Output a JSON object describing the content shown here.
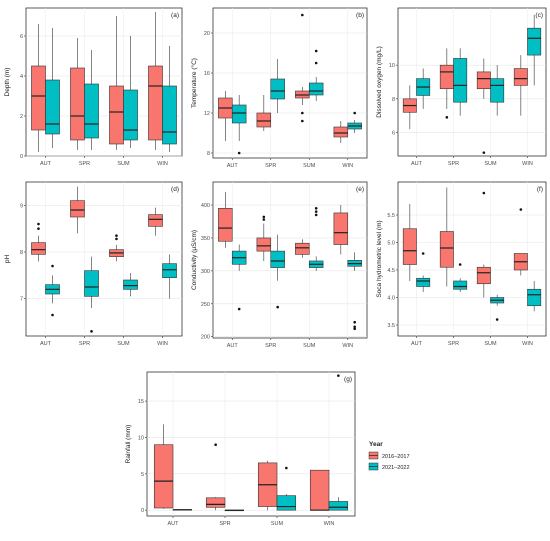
{
  "legend": {
    "title": "Year",
    "items": [
      {
        "label": "2016–2017",
        "color": "#f8766d"
      },
      {
        "label": "2021–2022",
        "color": "#00bfc4"
      }
    ]
  },
  "chart_data": [
    {
      "type": "boxplot",
      "panel": "(a)",
      "ylabel": "Depth (m)",
      "categories": [
        "AUT",
        "SPR",
        "SUM",
        "WIN"
      ],
      "yticks": [
        0,
        2,
        4,
        6
      ],
      "ylim": [
        0,
        7.4
      ],
      "series": [
        {
          "name": "2016–2017",
          "boxes": [
            {
              "min": 0.2,
              "q1": 1.3,
              "median": 3.0,
              "q3": 4.5,
              "max": 6.6,
              "outliers": []
            },
            {
              "min": 0.3,
              "q1": 0.8,
              "median": 2.0,
              "q3": 4.4,
              "max": 5.9,
              "outliers": []
            },
            {
              "min": 0.3,
              "q1": 0.6,
              "median": 2.2,
              "q3": 3.5,
              "max": 7.0,
              "outliers": []
            },
            {
              "min": 0.3,
              "q1": 0.8,
              "median": 3.5,
              "q3": 4.5,
              "max": 7.2,
              "outliers": []
            }
          ]
        },
        {
          "name": "2021–2022",
          "boxes": [
            {
              "min": 0.4,
              "q1": 1.1,
              "median": 1.6,
              "q3": 3.8,
              "max": 6.4,
              "outliers": []
            },
            {
              "min": 0.3,
              "q1": 0.9,
              "median": 1.6,
              "q3": 3.6,
              "max": 5.3,
              "outliers": []
            },
            {
              "min": 0.4,
              "q1": 0.8,
              "median": 1.3,
              "q3": 3.3,
              "max": 6.0,
              "outliers": []
            },
            {
              "min": 0.2,
              "q1": 0.6,
              "median": 1.2,
              "q3": 3.5,
              "max": 5.5,
              "outliers": []
            }
          ]
        }
      ]
    },
    {
      "type": "boxplot",
      "panel": "(b)",
      "ylabel": "Temperature (°C)",
      "categories": [
        "AUT",
        "SPR",
        "SUM",
        "WIN"
      ],
      "yticks": [
        8,
        12,
        16,
        20
      ],
      "ylim": [
        7.5,
        22.5
      ],
      "series": [
        {
          "name": "2016–2017",
          "boxes": [
            {
              "min": 9.2,
              "q1": 11.5,
              "median": 12.5,
              "q3": 13.5,
              "max": 14.2,
              "outliers": []
            },
            {
              "min": 10.2,
              "q1": 10.6,
              "median": 11.2,
              "q3": 12.0,
              "max": 13.8,
              "outliers": []
            },
            {
              "min": 12.8,
              "q1": 13.5,
              "median": 13.8,
              "q3": 14.2,
              "max": 14.6,
              "outliers": [
                21.8,
                12.0,
                11.2
              ]
            },
            {
              "min": 9.0,
              "q1": 9.6,
              "median": 10.0,
              "q3": 10.6,
              "max": 11.2,
              "outliers": []
            }
          ]
        },
        {
          "name": "2021–2022",
          "boxes": [
            {
              "min": 9.2,
              "q1": 11.0,
              "median": 12.0,
              "q3": 12.8,
              "max": 13.8,
              "outliers": [
                8.0
              ]
            },
            {
              "min": 12.0,
              "q1": 13.4,
              "median": 14.2,
              "q3": 15.4,
              "max": 17.4,
              "outliers": []
            },
            {
              "min": 13.2,
              "q1": 13.8,
              "median": 14.2,
              "q3": 15.0,
              "max": 15.6,
              "outliers": [
                18.2,
                17.0
              ]
            },
            {
              "min": 10.0,
              "q1": 10.4,
              "median": 10.7,
              "q3": 11.0,
              "max": 11.3,
              "outliers": [
                12.0
              ]
            }
          ]
        }
      ]
    },
    {
      "type": "boxplot",
      "panel": "(c)",
      "ylabel": "Dissolved oxygen (mg/L)",
      "categories": [
        "AUT",
        "SPR",
        "SUM",
        "WIN"
      ],
      "yticks": [
        6,
        8,
        10
      ],
      "ylim": [
        4.6,
        13.4
      ],
      "series": [
        {
          "name": "2016–2017",
          "boxes": [
            {
              "min": 6.2,
              "q1": 7.2,
              "median": 7.6,
              "q3": 8.0,
              "max": 8.8,
              "outliers": []
            },
            {
              "min": 7.4,
              "q1": 8.6,
              "median": 9.6,
              "q3": 10.0,
              "max": 11.0,
              "outliers": [
                6.9
              ]
            },
            {
              "min": 8.0,
              "q1": 8.6,
              "median": 9.2,
              "q3": 9.6,
              "max": 10.4,
              "outliers": [
                4.8
              ]
            },
            {
              "min": 7.0,
              "q1": 8.8,
              "median": 9.2,
              "q3": 9.8,
              "max": 10.6,
              "outliers": []
            }
          ]
        },
        {
          "name": "2021–2022",
          "boxes": [
            {
              "min": 7.4,
              "q1": 8.2,
              "median": 8.7,
              "q3": 9.2,
              "max": 9.8,
              "outliers": []
            },
            {
              "min": 7.0,
              "q1": 7.8,
              "median": 8.8,
              "q3": 10.4,
              "max": 11.0,
              "outliers": []
            },
            {
              "min": 7.0,
              "q1": 7.8,
              "median": 8.8,
              "q3": 9.2,
              "max": 10.0,
              "outliers": []
            },
            {
              "min": 8.8,
              "q1": 10.6,
              "median": 11.6,
              "q3": 12.2,
              "max": 13.0,
              "outliers": []
            }
          ]
        }
      ]
    },
    {
      "type": "boxplot",
      "panel": "(d)",
      "ylabel": "pH",
      "categories": [
        "AUT",
        "SPR",
        "SUM",
        "WIN"
      ],
      "yticks": [
        7,
        8,
        9
      ],
      "ylim": [
        6.2,
        9.5
      ],
      "series": [
        {
          "name": "2016–2017",
          "boxes": [
            {
              "min": 7.8,
              "q1": 7.95,
              "median": 8.05,
              "q3": 8.2,
              "max": 8.35,
              "outliers": [
                8.6,
                8.5
              ]
            },
            {
              "min": 8.4,
              "q1": 8.75,
              "median": 8.9,
              "q3": 9.1,
              "max": 9.4,
              "outliers": []
            },
            {
              "min": 7.8,
              "q1": 7.9,
              "median": 7.98,
              "q3": 8.05,
              "max": 8.15,
              "outliers": [
                8.35,
                8.28
              ]
            },
            {
              "min": 8.35,
              "q1": 8.55,
              "median": 8.7,
              "q3": 8.8,
              "max": 8.95,
              "outliers": []
            }
          ]
        },
        {
          "name": "2021–2022",
          "boxes": [
            {
              "min": 6.9,
              "q1": 7.1,
              "median": 7.2,
              "q3": 7.3,
              "max": 7.5,
              "outliers": [
                7.7,
                6.65
              ]
            },
            {
              "min": 6.8,
              "q1": 7.05,
              "median": 7.25,
              "q3": 7.6,
              "max": 7.9,
              "outliers": [
                6.3
              ]
            },
            {
              "min": 7.05,
              "q1": 7.2,
              "median": 7.28,
              "q3": 7.4,
              "max": 7.55,
              "outliers": []
            },
            {
              "min": 7.0,
              "q1": 7.45,
              "median": 7.62,
              "q3": 7.75,
              "max": 7.95,
              "outliers": []
            }
          ]
        }
      ]
    },
    {
      "type": "boxplot",
      "panel": "(e)",
      "ylabel": "Conductivity (μS/cm)",
      "categories": [
        "AUT",
        "SPR",
        "SUM",
        "WIN"
      ],
      "yticks": [
        200,
        250,
        300,
        350,
        400
      ],
      "ylim": [
        198,
        435
      ],
      "series": [
        {
          "name": "2016–2017",
          "boxes": [
            {
              "min": 335,
              "q1": 345,
              "median": 365,
              "q3": 395,
              "max": 420,
              "outliers": []
            },
            {
              "min": 315,
              "q1": 330,
              "median": 338,
              "q3": 350,
              "max": 372,
              "outliers": [
                378,
                382
              ]
            },
            {
              "min": 320,
              "q1": 325,
              "median": 335,
              "q3": 342,
              "max": 348,
              "outliers": []
            },
            {
              "min": 325,
              "q1": 340,
              "median": 358,
              "q3": 388,
              "max": 400,
              "outliers": []
            }
          ]
        },
        {
          "name": "2021–2022",
          "boxes": [
            {
              "min": 300,
              "q1": 310,
              "median": 320,
              "q3": 330,
              "max": 340,
              "outliers": [
                242
              ]
            },
            {
              "min": 285,
              "q1": 305,
              "median": 315,
              "q3": 330,
              "max": 355,
              "outliers": [
                245
              ]
            },
            {
              "min": 300,
              "q1": 305,
              "median": 310,
              "q3": 315,
              "max": 322,
              "outliers": [
                385,
                390,
                395
              ]
            },
            {
              "min": 300,
              "q1": 307,
              "median": 311,
              "q3": 316,
              "max": 328,
              "outliers": [
                222,
                215,
                212
              ]
            }
          ]
        }
      ]
    },
    {
      "type": "boxplot",
      "panel": "(f)",
      "ylabel": "Soca hydrometric level (m)",
      "categories": [
        "AUT",
        "SPR",
        "SUM",
        "WIN"
      ],
      "yticks": [
        3.5,
        4.0,
        4.5,
        5.0,
        5.5
      ],
      "ylim": [
        3.3,
        6.1
      ],
      "series": [
        {
          "name": "2016–2017",
          "boxes": [
            {
              "min": 4.3,
              "q1": 4.6,
              "median": 4.85,
              "q3": 5.25,
              "max": 5.7,
              "outliers": []
            },
            {
              "min": 4.2,
              "q1": 4.55,
              "median": 4.9,
              "q3": 5.2,
              "max": 6.0,
              "outliers": []
            },
            {
              "min": 4.0,
              "q1": 4.25,
              "median": 4.45,
              "q3": 4.55,
              "max": 4.6,
              "outliers": [
                5.9
              ]
            },
            {
              "min": 4.4,
              "q1": 4.5,
              "median": 4.65,
              "q3": 4.8,
              "max": 4.8,
              "outliers": [
                5.6
              ]
            }
          ]
        },
        {
          "name": "2021–2022",
          "boxes": [
            {
              "min": 4.1,
              "q1": 4.2,
              "median": 4.3,
              "q3": 4.35,
              "max": 4.4,
              "outliers": [
                4.8
              ]
            },
            {
              "min": 4.1,
              "q1": 4.15,
              "median": 4.2,
              "q3": 4.3,
              "max": 4.35,
              "outliers": [
                4.6
              ]
            },
            {
              "min": 3.85,
              "q1": 3.9,
              "median": 3.95,
              "q3": 4.0,
              "max": 4.05,
              "outliers": [
                3.6
              ]
            },
            {
              "min": 3.75,
              "q1": 3.85,
              "median": 4.05,
              "q3": 4.15,
              "max": 4.3,
              "outliers": []
            }
          ]
        }
      ]
    },
    {
      "type": "boxplot",
      "panel": "(g)",
      "ylabel": "Rainfall (mm)",
      "categories": [
        "AUT",
        "SPR",
        "SUM",
        "WIN"
      ],
      "yticks": [
        0,
        5,
        10,
        15
      ],
      "ylim": [
        -0.8,
        19
      ],
      "series": [
        {
          "name": "2016–2017",
          "boxes": [
            {
              "min": 0.2,
              "q1": 0.3,
              "median": 4.0,
              "q3": 9.0,
              "max": 11.8,
              "outliers": []
            },
            {
              "min": 0.0,
              "q1": 0.4,
              "median": 0.8,
              "q3": 1.7,
              "max": 1.8,
              "outliers": [
                9.0
              ]
            },
            {
              "min": 0.0,
              "q1": 0.5,
              "median": 3.5,
              "q3": 6.5,
              "max": 6.8,
              "outliers": []
            },
            {
              "min": 0.0,
              "q1": 0.0,
              "median": 0.0,
              "q3": 5.5,
              "max": 5.5,
              "outliers": []
            }
          ]
        },
        {
          "name": "2021–2022",
          "boxes": [
            {
              "min": 0.0,
              "q1": 0.0,
              "median": 0.05,
              "q3": 0.1,
              "max": 0.15,
              "outliers": []
            },
            {
              "min": 0.0,
              "q1": 0.0,
              "median": 0.0,
              "q3": 0.0,
              "max": 0.0,
              "outliers": []
            },
            {
              "min": 0.0,
              "q1": 0.0,
              "median": 0.5,
              "q3": 2.0,
              "max": 2.2,
              "outliers": [
                5.8
              ]
            },
            {
              "min": 0.0,
              "q1": 0.0,
              "median": 0.4,
              "q3": 1.2,
              "max": 1.8,
              "outliers": [
                18.5
              ]
            }
          ]
        }
      ]
    }
  ]
}
